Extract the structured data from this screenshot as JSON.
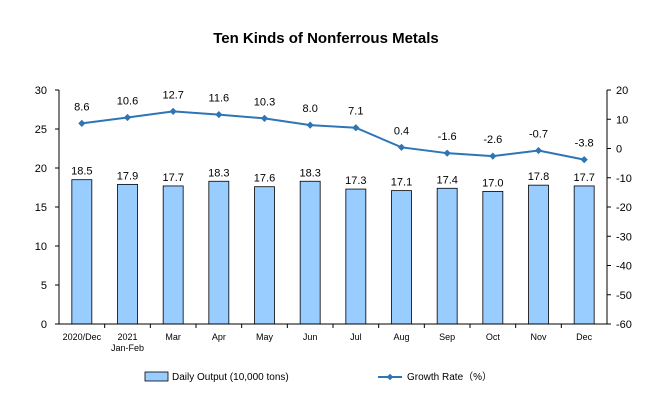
{
  "chart_data": {
    "type": "bar+line",
    "title": "Ten Kinds of Nonferrous Metals",
    "categories": [
      [
        "2020/Dec"
      ],
      [
        "2021",
        "Jan-Feb"
      ],
      [
        "Mar"
      ],
      [
        "Apr"
      ],
      [
        "May"
      ],
      [
        "Jun"
      ],
      [
        "Jul"
      ],
      [
        "Aug"
      ],
      [
        "Sep"
      ],
      [
        "Oct"
      ],
      [
        "Nov"
      ],
      [
        "Dec"
      ]
    ],
    "series": [
      {
        "name": "Daily Output (10,000 tons)",
        "type": "bar",
        "axis": "left",
        "values": [
          18.5,
          17.9,
          17.7,
          18.3,
          17.6,
          18.3,
          17.3,
          17.1,
          17.4,
          17.0,
          17.8,
          17.7
        ],
        "labels": [
          "18.5",
          "17.9",
          "17.7",
          "18.3",
          "17.6",
          "18.3",
          "17.3",
          "17.1",
          "17.4",
          "17.0",
          "17.8",
          "17.7"
        ],
        "color": "#99CCFF"
      },
      {
        "name": "Growth Rate（%）",
        "type": "line",
        "axis": "right",
        "values": [
          8.6,
          10.6,
          12.7,
          11.6,
          10.3,
          8.0,
          7.1,
          0.4,
          -1.6,
          -2.6,
          -0.7,
          -3.8
        ],
        "labels": [
          "8.6",
          "10.6",
          "12.7",
          "11.6",
          "10.3",
          "8.0",
          "7.1",
          "0.4",
          "-1.6",
          "-2.6",
          "-0.7",
          "-3.8"
        ],
        "color": "#2E75B6"
      }
    ],
    "y_left": {
      "min": 0,
      "max": 30,
      "step": 5,
      "ticks": [
        "0",
        "5",
        "10",
        "15",
        "20",
        "25",
        "30"
      ]
    },
    "y_right": {
      "min": -60,
      "max": 20,
      "step": 10,
      "ticks": [
        "-60",
        "-50",
        "-40",
        "-30",
        "-20",
        "-10",
        "0",
        "10",
        "20"
      ]
    },
    "grid": false,
    "legend_position": "bottom"
  }
}
